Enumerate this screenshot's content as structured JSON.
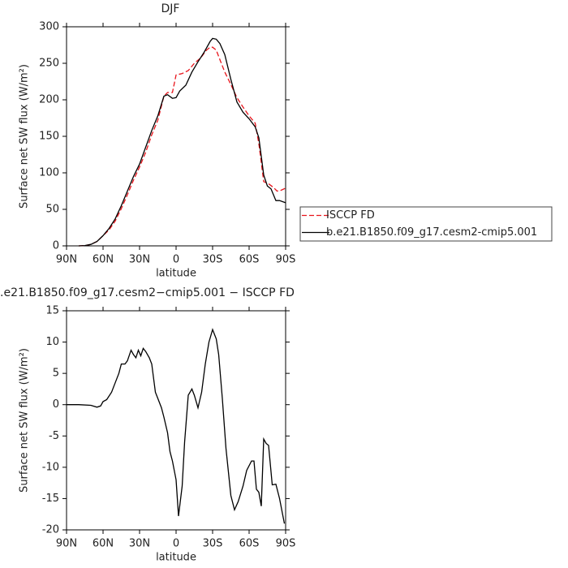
{
  "chart_data": [
    {
      "type": "line",
      "title": "DJF",
      "x_label": "latitude",
      "y_label": "Surface net SW flux (W/m²)",
      "xlim": [
        90,
        -90
      ],
      "ylim": [
        0,
        300
      ],
      "xticks": [
        {
          "value": 90,
          "label": "90N"
        },
        {
          "value": 60,
          "label": "60N"
        },
        {
          "value": 30,
          "label": "30N"
        },
        0,
        {
          "value": -30,
          "label": "30S"
        },
        {
          "value": -60,
          "label": "60S"
        },
        {
          "value": -90,
          "label": "90S"
        }
      ],
      "yticks": [
        0,
        50,
        100,
        150,
        200,
        250,
        300
      ],
      "legend": "outside-right",
      "series": [
        {
          "name": "ISCCP FD",
          "color": "#e8141b",
          "dash": true,
          "x": [
            80,
            75,
            70,
            65,
            60,
            55,
            50,
            45,
            40,
            35,
            30,
            25,
            20,
            15,
            10,
            7,
            3,
            0,
            -5,
            -10,
            -15,
            -20,
            -25,
            -28,
            -30,
            -33,
            -36,
            -40,
            -45,
            -50,
            -55,
            -60,
            -65,
            -68,
            -72,
            -76,
            -80,
            -83,
            -86,
            -90
          ],
          "values": [
            0,
            0.5,
            2,
            6,
            14,
            22,
            34,
            51,
            70,
            90,
            108,
            128,
            152,
            172,
            205,
            210,
            210,
            234,
            236,
            240,
            250,
            257,
            268,
            272,
            272,
            268,
            255,
            238,
            221,
            203,
            190,
            178,
            168,
            140,
            88,
            85,
            80,
            75,
            76,
            79
          ]
        },
        {
          "name": "b.e21.B1850.f09_g17.cesm2-cmip5.001",
          "color": "#000000",
          "dash": false,
          "x": [
            80,
            75,
            70,
            65,
            60,
            55,
            50,
            45,
            40,
            35,
            30,
            25,
            20,
            15,
            10,
            7,
            3,
            0,
            -3,
            -8,
            -13,
            -18,
            -23,
            -28,
            -30,
            -33,
            -36,
            -40,
            -45,
            -50,
            -55,
            -60,
            -65,
            -68,
            -72,
            -75,
            -78,
            -82,
            -85,
            -90
          ],
          "values": [
            0,
            0.5,
            2,
            6,
            14,
            24,
            37,
            55,
            75,
            95,
            112,
            135,
            158,
            178,
            205,
            207,
            202,
            203,
            212,
            220,
            238,
            252,
            265,
            280,
            284,
            283,
            277,
            262,
            228,
            197,
            183,
            174,
            163,
            148,
            97,
            82,
            78,
            62,
            62,
            59
          ]
        }
      ]
    },
    {
      "type": "line",
      "title": ".e21.B1850.f09_g17.cesm2−cmip5.001 − ISCCP FD",
      "x_label": "latitude",
      "y_label": "Surface net SW flux (W/m²)",
      "xlim": [
        90,
        -90
      ],
      "ylim": [
        -20,
        15
      ],
      "xticks": [
        {
          "value": 90,
          "label": "90N"
        },
        {
          "value": 60,
          "label": "60N"
        },
        {
          "value": 30,
          "label": "30N"
        },
        0,
        {
          "value": -30,
          "label": "30S"
        },
        {
          "value": -60,
          "label": "60S"
        },
        {
          "value": -90,
          "label": "90S"
        }
      ],
      "yticks": [
        -20,
        -15,
        -10,
        -5,
        0,
        5,
        10,
        15
      ],
      "series": [
        {
          "color": "#000000",
          "dash": false,
          "x": [
            90,
            80,
            70,
            65,
            62,
            60,
            57,
            53,
            50,
            47,
            45,
            42,
            40,
            37,
            35,
            33,
            31,
            29,
            27,
            25,
            22,
            20,
            17,
            15,
            12,
            10,
            7,
            5,
            3,
            0,
            -2,
            -5,
            -7,
            -10,
            -13,
            -15,
            -18,
            -21,
            -24,
            -27,
            -30,
            -33,
            -35,
            -38,
            -41,
            -45,
            -48,
            -51,
            -55,
            -58,
            -62,
            -64,
            -66,
            -68,
            -70,
            -72,
            -74,
            -76,
            -79,
            -82,
            -85,
            -89
          ],
          "values": [
            0,
            0,
            -0.1,
            -0.4,
            -0.2,
            0.5,
            0.8,
            2,
            3.5,
            5,
            6.5,
            6.5,
            7,
            8.7,
            8,
            7.5,
            8.7,
            7.8,
            9,
            8.5,
            7.5,
            6.5,
            2,
            1,
            -0.5,
            -2,
            -4.5,
            -7.5,
            -9,
            -12,
            -17.8,
            -13,
            -6,
            1.5,
            2.5,
            1.5,
            -0.5,
            2,
            6.5,
            10,
            12,
            10.5,
            8,
            1,
            -7,
            -14.5,
            -16.8,
            -15.5,
            -13,
            -10.5,
            -9,
            -9,
            -13.5,
            -14,
            -16.2,
            -5.5,
            -6.2,
            -6.5,
            -12.8,
            -12.7,
            -15,
            -19
          ]
        }
      ]
    }
  ]
}
